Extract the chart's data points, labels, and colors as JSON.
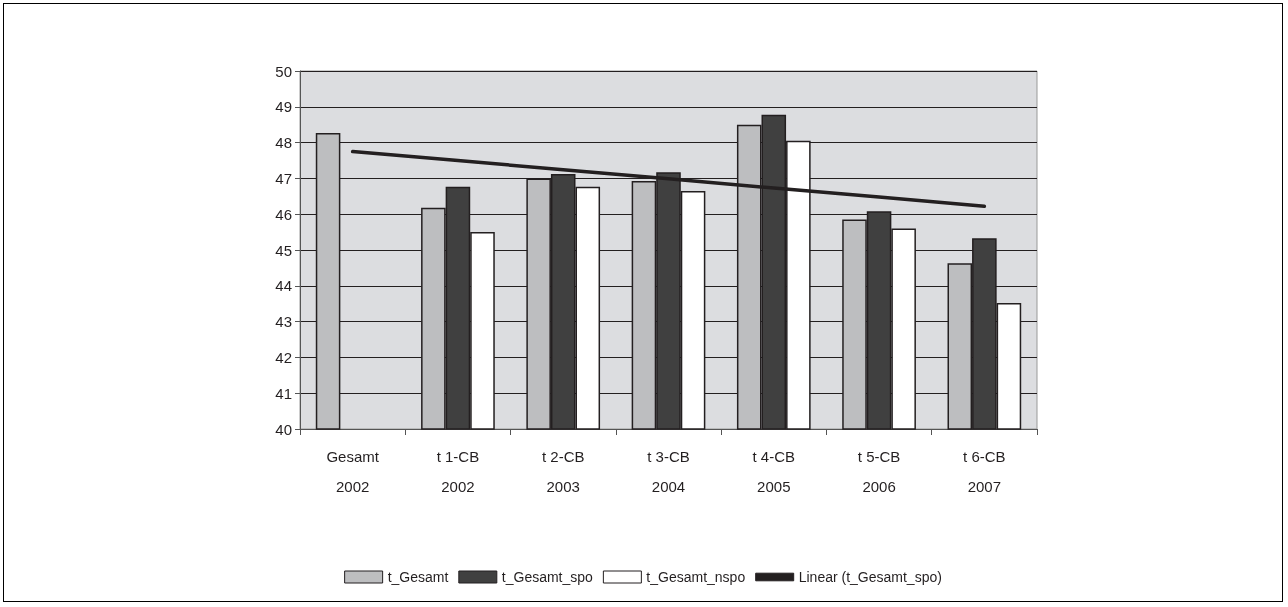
{
  "chart_data": {
    "type": "bar",
    "categories": [
      "Gesamt\n2002",
      "t 1-CB\n2002",
      "t 2-CB\n2003",
      "t 3-CB\n2004",
      "t 4-CB\n2005",
      "t 5-CB\n2006",
      "t 6-CB\n2007"
    ],
    "series": [
      {
        "name": "t_Gesamt",
        "color": "#bdbec0",
        "values": [
          48.27,
          46.18,
          47.0,
          46.93,
          48.5,
          45.85,
          44.63
        ]
      },
      {
        "name": "t_Gesamt_spo",
        "color": "#404040",
        "values": [
          null,
          46.77,
          47.12,
          47.17,
          48.78,
          46.08,
          45.33
        ]
      },
      {
        "name": "t_Gesamt_nspo",
        "color": "#ffffff",
        "values": [
          null,
          45.5,
          46.77,
          46.65,
          48.05,
          45.6,
          43.52
        ]
      },
      {
        "name": "Linear (t_Gesamt_spo)",
        "type": "line",
        "color": "#231f20",
        "marker": "none",
        "line_style": "solid",
        "values": [
          47.75,
          47.5,
          47.24,
          46.99,
          46.73,
          46.48,
          46.22
        ]
      }
    ],
    "ylim": [
      40,
      50
    ],
    "yticks": [
      40,
      41,
      42,
      43,
      44,
      45,
      46,
      47,
      48,
      49,
      50
    ],
    "grid": "y",
    "legend": "bottom"
  }
}
